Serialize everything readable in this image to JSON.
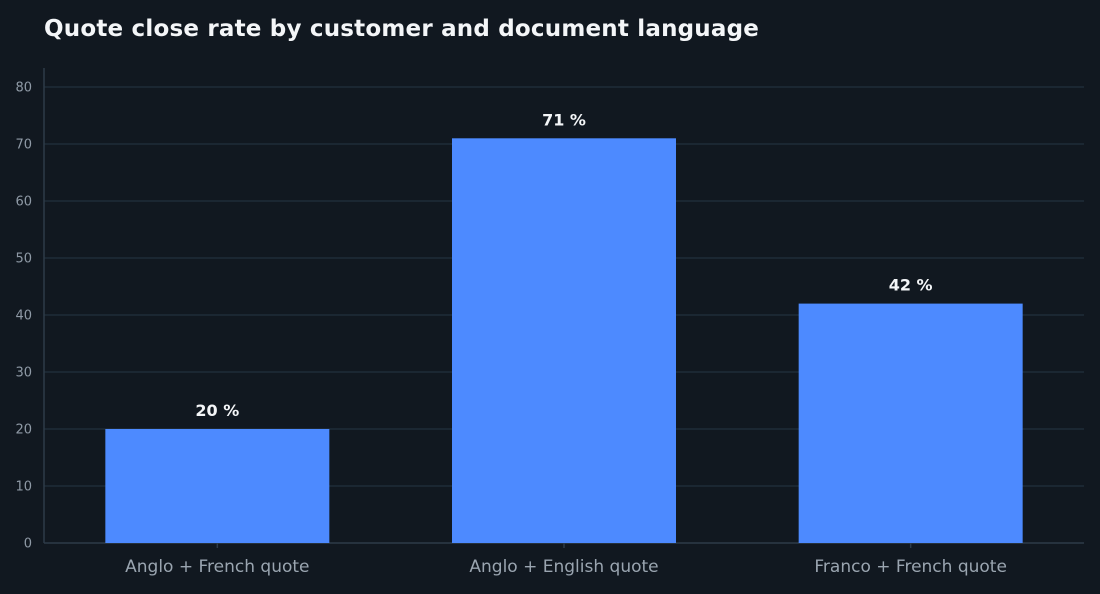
{
  "chart_data": {
    "type": "bar",
    "title": "Quote close rate by customer and document language",
    "xlabel": "",
    "ylabel": "",
    "categories": [
      "Anglo + French quote",
      "Anglo + English quote",
      "Franco + French quote"
    ],
    "values": [
      20,
      71,
      42
    ],
    "data_labels": [
      "20 %",
      "71 %",
      "42 %"
    ],
    "ylim": [
      0,
      84
    ],
    "yticks": [
      0,
      10,
      20,
      30,
      40,
      50,
      60,
      70,
      80
    ],
    "grid": true,
    "legend": "none",
    "colors": {
      "background": "#111820",
      "bar": "#4d8aff",
      "grid": "#1f2c38",
      "axis": "#2e3b48"
    }
  }
}
